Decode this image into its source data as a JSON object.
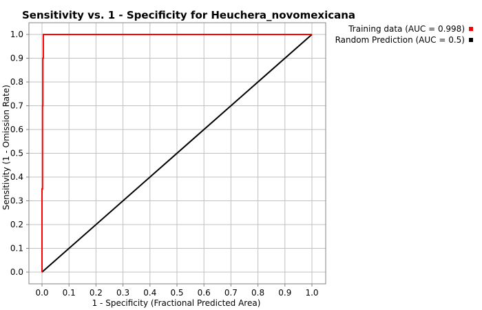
{
  "chart_data": {
    "type": "line",
    "title": "Sensitivity vs. 1 - Specificity for Heuchera_novomexicana",
    "xlabel": "1 - Specificity  (Fractional Predicted Area)",
    "ylabel": "Sensitivity  (1 - Omission Rate)",
    "xlim": [
      0,
      1
    ],
    "ylim": [
      0,
      1
    ],
    "xticks": [
      "0.0",
      "0.1",
      "0.2",
      "0.3",
      "0.4",
      "0.5",
      "0.6",
      "0.7",
      "0.8",
      "0.9",
      "1.0"
    ],
    "yticks": [
      "0.0",
      "0.1",
      "0.2",
      "0.3",
      "0.4",
      "0.5",
      "0.6",
      "0.7",
      "0.8",
      "0.9",
      "1.0"
    ],
    "grid": true,
    "legend_position": "outside-top-right",
    "series": [
      {
        "name": "Training data (AUC = 0.998)",
        "color": "#ff0000",
        "points": [
          [
            0.0,
            0.0
          ],
          [
            0.0,
            0.35
          ],
          [
            0.002,
            0.35
          ],
          [
            0.002,
            0.7
          ],
          [
            0.003,
            0.7
          ],
          [
            0.003,
            0.9
          ],
          [
            0.005,
            0.9
          ],
          [
            0.005,
            1.0
          ],
          [
            0.01,
            1.0
          ],
          [
            1.0,
            1.0
          ]
        ]
      },
      {
        "name": "Random Prediction (AUC = 0.5)",
        "color": "#000000",
        "points": [
          [
            0.0,
            0.0
          ],
          [
            1.0,
            1.0
          ]
        ]
      }
    ]
  }
}
